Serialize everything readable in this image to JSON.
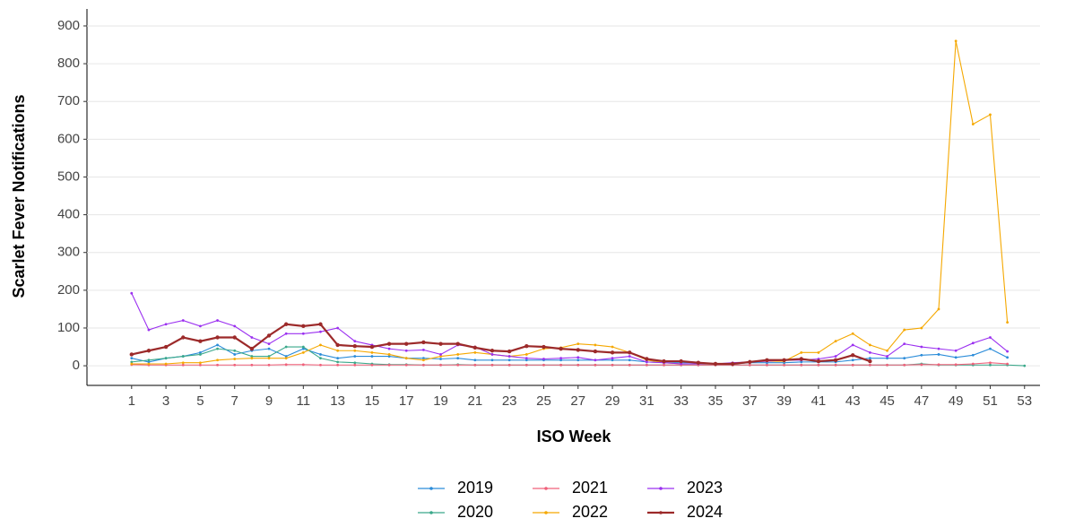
{
  "chart_data": {
    "type": "line",
    "x_label": "ISO Week",
    "y_label": "Scarlet Fever Notifications",
    "xlim": [
      -1.6,
      53.9
    ],
    "ylim": [
      -52,
      945
    ],
    "xticks": [
      1,
      3,
      5,
      7,
      9,
      11,
      13,
      15,
      17,
      19,
      21,
      23,
      25,
      27,
      29,
      31,
      33,
      35,
      37,
      39,
      41,
      43,
      45,
      47,
      49,
      51,
      53
    ],
    "yticks": [
      0,
      100,
      200,
      300,
      400,
      500,
      600,
      700,
      800,
      900
    ],
    "grid": true,
    "legend_position": "bottom",
    "series": [
      {
        "name": "2019",
        "color": "#2b8cd9",
        "x": [
          1,
          2,
          3,
          4,
          5,
          6,
          7,
          8,
          9,
          10,
          11,
          12,
          13,
          14,
          15,
          16,
          17,
          18,
          19,
          20,
          21,
          22,
          23,
          24,
          25,
          26,
          27,
          28,
          29,
          30,
          31,
          32,
          33,
          34,
          35,
          36,
          37,
          38,
          39,
          40,
          41,
          42,
          43,
          44,
          45,
          46,
          47,
          48,
          49,
          50,
          51,
          52
        ],
        "values": [
          20,
          10,
          20,
          25,
          35,
          55,
          30,
          40,
          45,
          25,
          45,
          30,
          20,
          25,
          25,
          25,
          20,
          20,
          18,
          20,
          15,
          15,
          15,
          15,
          15,
          15,
          15,
          15,
          15,
          15,
          10,
          8,
          8,
          8,
          5,
          5,
          8,
          8,
          8,
          10,
          10,
          10,
          15,
          20,
          20,
          20,
          28,
          30,
          22,
          28,
          45,
          22
        ]
      },
      {
        "name": "2020",
        "color": "#3aa88a",
        "x": [
          1,
          2,
          3,
          4,
          5,
          6,
          7,
          8,
          9,
          10,
          11,
          12,
          13,
          14,
          15,
          16,
          17,
          18,
          19,
          20,
          21,
          22,
          23,
          24,
          25,
          26,
          27,
          28,
          29,
          30,
          31,
          32,
          33,
          34,
          35,
          36,
          37,
          38,
          39,
          40,
          41,
          42,
          43,
          44,
          45,
          46,
          47,
          48,
          49,
          50,
          51,
          52,
          53
        ],
        "values": [
          10,
          15,
          20,
          25,
          30,
          45,
          40,
          25,
          25,
          50,
          50,
          20,
          10,
          8,
          5,
          3,
          3,
          2,
          2,
          3,
          2,
          2,
          2,
          2,
          2,
          2,
          2,
          2,
          2,
          2,
          2,
          2,
          2,
          2,
          2,
          2,
          2,
          2,
          2,
          2,
          2,
          2,
          2,
          2,
          2,
          2,
          5,
          2,
          2,
          2,
          2,
          2,
          0
        ]
      },
      {
        "name": "2021",
        "color": "#f0607a",
        "x": [
          1,
          2,
          3,
          4,
          5,
          6,
          7,
          8,
          9,
          10,
          11,
          12,
          13,
          14,
          15,
          16,
          17,
          18,
          19,
          20,
          21,
          22,
          23,
          24,
          25,
          26,
          27,
          28,
          29,
          30,
          31,
          32,
          33,
          34,
          35,
          36,
          37,
          38,
          39,
          40,
          41,
          42,
          43,
          44,
          45,
          46,
          47,
          48,
          49,
          50,
          51,
          52
        ],
        "values": [
          3,
          2,
          2,
          2,
          2,
          2,
          2,
          2,
          2,
          3,
          3,
          2,
          2,
          2,
          2,
          2,
          2,
          2,
          2,
          2,
          2,
          2,
          2,
          2,
          2,
          2,
          2,
          2,
          2,
          2,
          2,
          2,
          2,
          2,
          2,
          2,
          2,
          2,
          2,
          2,
          2,
          2,
          2,
          2,
          2,
          2,
          3,
          3,
          3,
          5,
          8,
          5
        ]
      },
      {
        "name": "2022",
        "color": "#f5a800",
        "x": [
          1,
          2,
          3,
          4,
          5,
          6,
          7,
          8,
          9,
          10,
          11,
          12,
          13,
          14,
          15,
          16,
          17,
          18,
          19,
          20,
          21,
          22,
          23,
          24,
          25,
          26,
          27,
          28,
          29,
          30,
          31,
          32,
          33,
          34,
          35,
          36,
          37,
          38,
          39,
          40,
          41,
          42,
          43,
          44,
          45,
          46,
          47,
          48,
          49,
          50,
          51,
          52
        ],
        "values": [
          5,
          5,
          5,
          8,
          8,
          15,
          18,
          20,
          20,
          20,
          35,
          55,
          40,
          40,
          35,
          30,
          20,
          15,
          25,
          30,
          35,
          30,
          25,
          30,
          45,
          48,
          58,
          55,
          50,
          35,
          15,
          8,
          5,
          5,
          5,
          5,
          10,
          12,
          12,
          35,
          35,
          65,
          85,
          55,
          40,
          95,
          100,
          150,
          860,
          640,
          665,
          115
        ]
      },
      {
        "name": "2023",
        "color": "#9b30f0",
        "x": [
          1,
          2,
          3,
          4,
          5,
          6,
          7,
          8,
          9,
          10,
          11,
          12,
          13,
          14,
          15,
          16,
          17,
          18,
          19,
          20,
          21,
          22,
          23,
          24,
          25,
          26,
          27,
          28,
          29,
          30,
          31,
          32,
          33,
          34,
          35,
          36,
          37,
          38,
          39,
          40,
          41,
          42,
          43,
          44,
          45,
          46,
          47,
          48,
          49,
          50,
          51,
          52
        ],
        "values": [
          192,
          95,
          110,
          120,
          105,
          120,
          105,
          75,
          58,
          85,
          85,
          90,
          100,
          65,
          55,
          45,
          40,
          42,
          30,
          55,
          50,
          30,
          25,
          20,
          18,
          20,
          22,
          15,
          20,
          25,
          10,
          8,
          5,
          5,
          5,
          8,
          10,
          12,
          15,
          15,
          18,
          25,
          55,
          35,
          25,
          58,
          50,
          45,
          40,
          60,
          75,
          38
        ]
      },
      {
        "name": "2024",
        "color": "#9c2a2a",
        "x": [
          1,
          2,
          3,
          4,
          5,
          6,
          7,
          8,
          9,
          10,
          11,
          12,
          13,
          14,
          15,
          16,
          17,
          18,
          19,
          20,
          21,
          22,
          23,
          24,
          25,
          26,
          27,
          28,
          29,
          30,
          31,
          32,
          33,
          34,
          35,
          36,
          37,
          38,
          39,
          40,
          41,
          42,
          43,
          44
        ],
        "values": [
          30,
          40,
          50,
          75,
          65,
          75,
          75,
          45,
          80,
          110,
          105,
          110,
          55,
          52,
          50,
          58,
          58,
          62,
          58,
          58,
          48,
          40,
          38,
          52,
          50,
          45,
          42,
          38,
          35,
          35,
          18,
          12,
          12,
          8,
          5,
          5,
          10,
          15,
          15,
          18,
          12,
          15,
          28,
          12
        ]
      }
    ]
  }
}
